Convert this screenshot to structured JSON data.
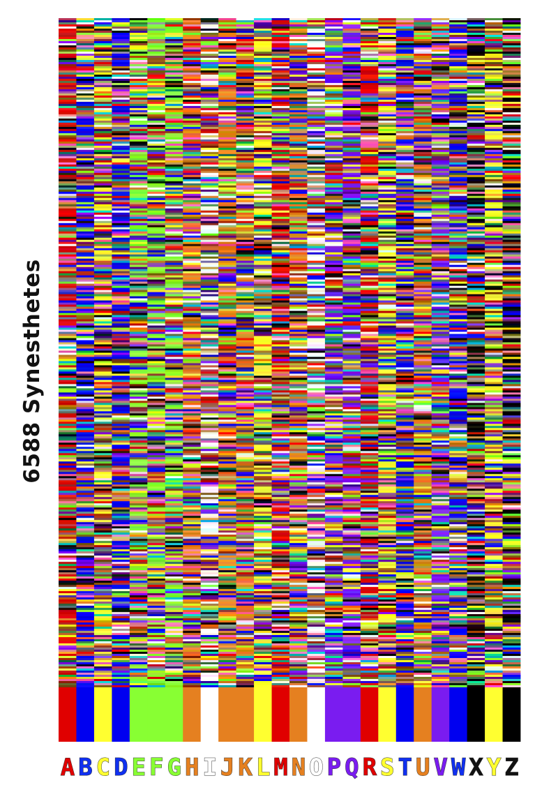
{
  "chart_data": {
    "type": "heatmap",
    "ylabel": "6588 Synesthetes",
    "columns": [
      "A",
      "B",
      "C",
      "D",
      "E",
      "F",
      "G",
      "H",
      "I",
      "J",
      "K",
      "L",
      "M",
      "N",
      "O",
      "P",
      "Q",
      "R",
      "S",
      "T",
      "U",
      "V",
      "W",
      "X",
      "Y",
      "Z"
    ],
    "consensus_colors": {
      "A": "#e00000",
      "B": "#0000f0",
      "C": "#ffff30",
      "D": "#0000f0",
      "E": "#88ff33",
      "F": "#88ff33",
      "G": "#88ff33",
      "H": "#e58020",
      "I": "#ffffff",
      "J": "#e58020",
      "K": "#e58020",
      "L": "#ffff30",
      "M": "#e00000",
      "N": "#e58020",
      "O": "#ffffff",
      "P": "#7a1cf0",
      "Q": "#7a1cf0",
      "R": "#e00000",
      "S": "#ffff30",
      "T": "#0000f0",
      "U": "#e58020",
      "V": "#7a1cf0",
      "W": "#0000f0",
      "X": "#000000",
      "Y": "#ffff30",
      "Z": "#000000"
    },
    "letter_colors": {
      "A": "#e00000",
      "B": "#1030f0",
      "C": "#ffff30",
      "D": "#1030f0",
      "E": "#88ff33",
      "F": "#88ff33",
      "G": "#88ff33",
      "H": "#e58020",
      "I": "#ffffff",
      "J": "#e58020",
      "K": "#e58020",
      "L": "#ffff30",
      "M": "#e00000",
      "N": "#e58020",
      "O": "#ffffff",
      "P": "#7a1cf0",
      "Q": "#7a1cf0",
      "R": "#e00000",
      "S": "#ffff30",
      "T": "#1030f0",
      "U": "#e58020",
      "V": "#7a1cf0",
      "W": "#1030f0",
      "X": "#111111",
      "Y": "#ffff30",
      "Z": "#111111"
    },
    "palette": [
      "#e00000",
      "#0000f0",
      "#ffff30",
      "#88ff33",
      "#e58020",
      "#7a1cf0",
      "#000000",
      "#ffffff",
      "#8b4513",
      "#ff69b4",
      "#808080",
      "#00c0c0",
      "#2e8b57",
      "#c0a060",
      "#4b0082",
      "#a0522d"
    ],
    "grid": false,
    "legend": "none"
  }
}
